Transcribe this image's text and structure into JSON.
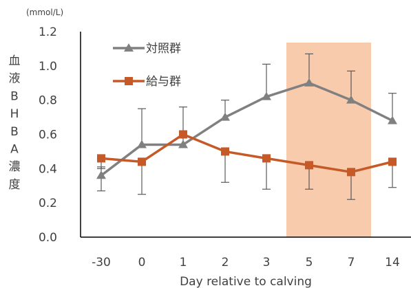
{
  "chart_data": {
    "type": "line",
    "categories": [
      "-30",
      "0",
      "1",
      "2",
      "3",
      "5",
      "7",
      "14"
    ],
    "ylim": [
      0,
      1.2
    ],
    "yticks": [
      "0.0",
      "0.2",
      "0.4",
      "0.6",
      "0.8",
      "1.0",
      "1.2"
    ],
    "unit_label": "(mmol/L)",
    "xlabel": "Day relative to calving",
    "ylabel_chars": [
      "血",
      "液",
      "B",
      "H",
      "B",
      "A",
      "濃",
      "度"
    ],
    "grid": false,
    "highlight": {
      "from_category": "5",
      "to_category": "7",
      "color": "#f8cbad"
    },
    "legend_position": "top-left",
    "series": [
      {
        "name": "対照群",
        "color": "#808080",
        "marker": "triangle",
        "values": [
          0.36,
          0.54,
          0.54,
          0.7,
          0.82,
          0.9,
          0.8,
          0.68
        ],
        "error_upper": [
          0.41,
          0.75,
          0.76,
          0.8,
          1.01,
          1.07,
          0.97,
          0.84
        ],
        "error_lower": [
          0.27,
          0.54,
          0.54,
          0.7,
          0.82,
          0.9,
          0.8,
          0.68
        ]
      },
      {
        "name": "給与群",
        "color": "#c55a28",
        "marker": "square",
        "values": [
          0.46,
          0.44,
          0.6,
          0.5,
          0.46,
          0.42,
          0.38,
          0.44
        ],
        "error_upper": [
          0.46,
          0.44,
          0.6,
          0.5,
          0.46,
          0.42,
          0.38,
          0.44
        ],
        "error_lower": [
          0.4,
          0.25,
          0.6,
          0.32,
          0.28,
          0.28,
          0.22,
          0.29
        ]
      }
    ]
  }
}
